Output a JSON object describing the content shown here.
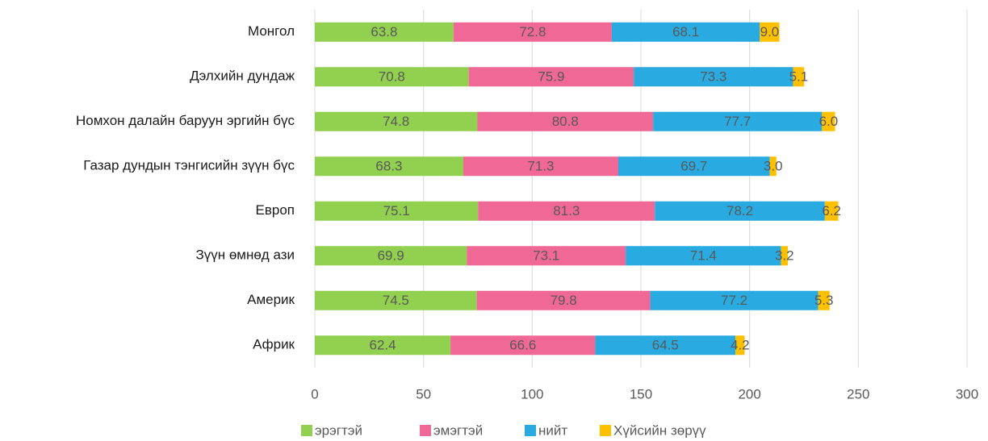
{
  "chart_data": {
    "type": "stacked_barh",
    "categories": [
      "Монгол",
      "Дэлхийн дундаж",
      "Номхон далайн баруун эргийн бүс",
      "Газар дундын тэнгисийн зүүн бүс",
      "Европ",
      "Зүүн өмнөд ази",
      "Америк",
      "Африк"
    ],
    "series": [
      {
        "name": "эрэгтэй",
        "color": "#92d050",
        "values": [
          63.8,
          70.8,
          74.8,
          68.3,
          75.1,
          69.9,
          74.5,
          62.4
        ]
      },
      {
        "name": "эмэгтэй",
        "color": "#f06896",
        "values": [
          72.8,
          75.9,
          80.8,
          71.3,
          81.3,
          73.1,
          79.8,
          66.6
        ]
      },
      {
        "name": "нийт",
        "color": "#29abe2",
        "values": [
          68.1,
          73.3,
          77.7,
          69.7,
          78.2,
          71.4,
          77.2,
          64.5
        ]
      },
      {
        "name": "Хүйсийн зөрүү",
        "color": "#ffc000",
        "values": [
          9,
          5.1,
          6,
          3,
          6.2,
          3.2,
          5.3,
          4.2
        ],
        "value_labels": [
          "9.0",
          "5.1",
          "6.0",
          "3.0",
          "6.2",
          "3.2",
          "5.3",
          "4.2"
        ]
      }
    ],
    "xlim": [
      0,
      300
    ],
    "xticks": [
      0,
      50,
      100,
      150,
      200,
      250,
      300
    ],
    "grid": true,
    "legend": "bottom"
  }
}
